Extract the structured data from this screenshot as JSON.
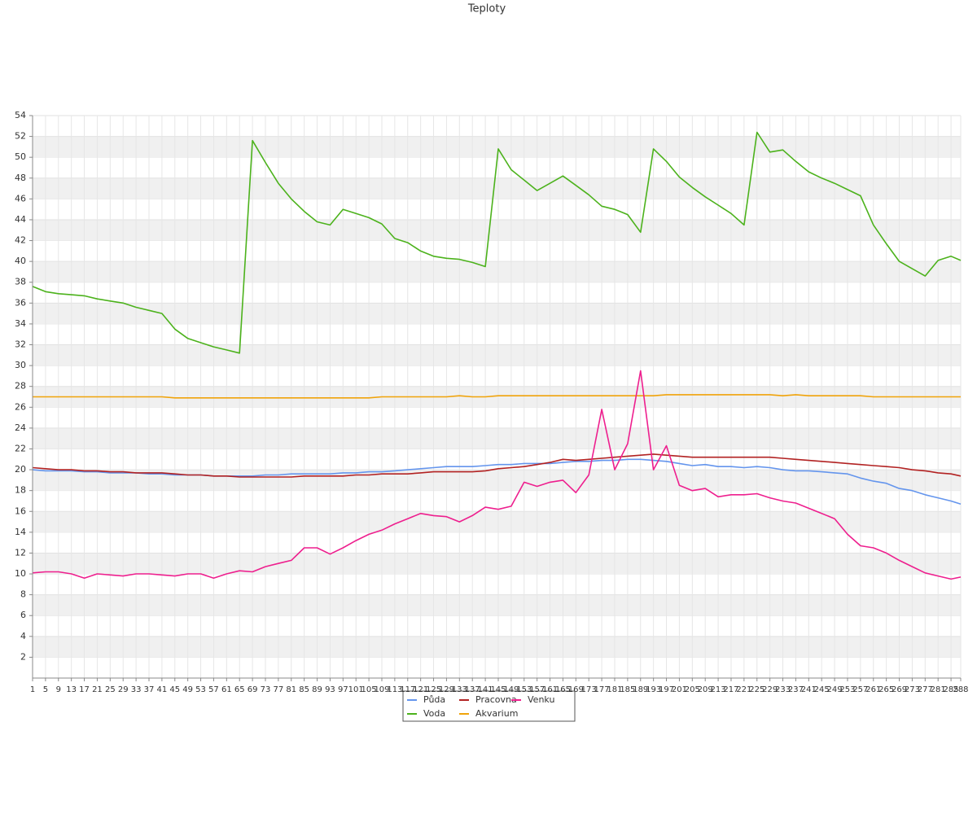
{
  "chart_data": {
    "type": "line",
    "title": "Teploty",
    "x": [
      1,
      5,
      9,
      13,
      17,
      21,
      25,
      29,
      33,
      37,
      41,
      45,
      49,
      53,
      57,
      61,
      65,
      69,
      73,
      77,
      81,
      85,
      89,
      93,
      97,
      101,
      105,
      109,
      113,
      117,
      121,
      125,
      129,
      133,
      137,
      141,
      145,
      149,
      153,
      157,
      161,
      165,
      169,
      173,
      177,
      181,
      185,
      189,
      193,
      197,
      201,
      205,
      209,
      213,
      217,
      221,
      225,
      229,
      233,
      237,
      241,
      245,
      249,
      253,
      257,
      261,
      265,
      269,
      273,
      277,
      281,
      285,
      288
    ],
    "xlim": [
      1,
      288
    ],
    "ylim": [
      0,
      54
    ],
    "yticks": [
      2,
      4,
      6,
      8,
      10,
      12,
      14,
      16,
      18,
      20,
      22,
      24,
      26,
      28,
      30,
      32,
      34,
      36,
      38,
      40,
      42,
      44,
      46,
      48,
      50,
      52,
      54
    ],
    "grid": true,
    "legend": "bottom",
    "series": [
      {
        "name": "Půda",
        "color": "#6495ed",
        "values": [
          20.0,
          19.9,
          19.9,
          19.9,
          19.8,
          19.8,
          19.7,
          19.7,
          19.7,
          19.6,
          19.6,
          19.5,
          19.5,
          19.5,
          19.4,
          19.4,
          19.4,
          19.4,
          19.5,
          19.5,
          19.6,
          19.6,
          19.6,
          19.6,
          19.7,
          19.7,
          19.8,
          19.8,
          19.9,
          20.0,
          20.1,
          20.2,
          20.3,
          20.3,
          20.3,
          20.4,
          20.5,
          20.5,
          20.6,
          20.6,
          20.6,
          20.7,
          20.8,
          20.8,
          20.9,
          20.9,
          21.0,
          21.0,
          20.9,
          20.8,
          20.6,
          20.4,
          20.5,
          20.3,
          20.3,
          20.2,
          20.3,
          20.2,
          20.0,
          19.9,
          19.9,
          19.8,
          19.7,
          19.6,
          19.2,
          18.9,
          18.7,
          18.2,
          18.0,
          17.6,
          17.3,
          17.0,
          16.7
        ]
      },
      {
        "name": "Voda",
        "color": "#4cb21c",
        "values": [
          37.6,
          37.1,
          36.9,
          36.8,
          36.7,
          36.4,
          36.2,
          36.0,
          35.6,
          35.3,
          35.0,
          33.5,
          32.6,
          32.2,
          31.8,
          31.5,
          31.2,
          51.6,
          49.5,
          47.5,
          46.0,
          44.8,
          43.8,
          43.5,
          45.0,
          44.6,
          44.2,
          43.6,
          42.2,
          41.8,
          41.0,
          40.5,
          40.3,
          40.2,
          39.9,
          39.5,
          50.8,
          48.8,
          47.8,
          46.8,
          47.5,
          48.2,
          47.3,
          46.4,
          45.3,
          45.0,
          44.5,
          42.8,
          50.8,
          49.6,
          48.1,
          47.1,
          46.2,
          45.4,
          44.6,
          43.5,
          52.4,
          50.5,
          50.7,
          49.6,
          48.6,
          48.0,
          47.5,
          46.9,
          46.3,
          43.5,
          41.7,
          40.0,
          39.3,
          38.6,
          40.1,
          40.5,
          40.1
        ]
      },
      {
        "name": "Pracovna",
        "color": "#b22222",
        "values": [
          20.2,
          20.1,
          20.0,
          20.0,
          19.9,
          19.9,
          19.8,
          19.8,
          19.7,
          19.7,
          19.7,
          19.6,
          19.5,
          19.5,
          19.4,
          19.4,
          19.3,
          19.3,
          19.3,
          19.3,
          19.3,
          19.4,
          19.4,
          19.4,
          19.4,
          19.5,
          19.5,
          19.6,
          19.6,
          19.6,
          19.7,
          19.8,
          19.8,
          19.8,
          19.8,
          19.9,
          20.1,
          20.2,
          20.3,
          20.5,
          20.7,
          21.0,
          20.9,
          21.0,
          21.1,
          21.2,
          21.3,
          21.4,
          21.5,
          21.4,
          21.3,
          21.2,
          21.2,
          21.2,
          21.2,
          21.2,
          21.2,
          21.2,
          21.1,
          21.0,
          20.9,
          20.8,
          20.7,
          20.6,
          20.5,
          20.4,
          20.3,
          20.2,
          20.0,
          19.9,
          19.7,
          19.6,
          19.4
        ]
      },
      {
        "name": "Akvarium",
        "color": "#f0a30a",
        "values": [
          27.0,
          27.0,
          27.0,
          27.0,
          27.0,
          27.0,
          27.0,
          27.0,
          27.0,
          27.0,
          27.0,
          26.9,
          26.9,
          26.9,
          26.9,
          26.9,
          26.9,
          26.9,
          26.9,
          26.9,
          26.9,
          26.9,
          26.9,
          26.9,
          26.9,
          26.9,
          26.9,
          27.0,
          27.0,
          27.0,
          27.0,
          27.0,
          27.0,
          27.1,
          27.0,
          27.0,
          27.1,
          27.1,
          27.1,
          27.1,
          27.1,
          27.1,
          27.1,
          27.1,
          27.1,
          27.1,
          27.1,
          27.1,
          27.1,
          27.2,
          27.2,
          27.2,
          27.2,
          27.2,
          27.2,
          27.2,
          27.2,
          27.2,
          27.1,
          27.2,
          27.1,
          27.1,
          27.1,
          27.1,
          27.1,
          27.0,
          27.0,
          27.0,
          27.0,
          27.0,
          27.0,
          27.0,
          27.0
        ]
      },
      {
        "name": "Venku",
        "color": "#ee1f8e",
        "values": [
          10.1,
          10.2,
          10.2,
          10.0,
          9.6,
          10.0,
          9.9,
          9.8,
          10.0,
          10.0,
          9.9,
          9.8,
          10.0,
          10.0,
          9.6,
          10.0,
          10.3,
          10.2,
          10.7,
          11.0,
          11.3,
          12.5,
          12.5,
          11.9,
          12.5,
          13.2,
          13.8,
          14.2,
          14.8,
          15.3,
          15.8,
          15.6,
          15.5,
          15.0,
          15.6,
          16.4,
          16.2,
          16.5,
          18.8,
          18.4,
          18.8,
          19.0,
          17.8,
          19.5,
          25.8,
          20.0,
          22.5,
          29.5,
          20.0,
          22.3,
          18.5,
          18.0,
          18.2,
          17.4,
          17.6,
          17.6,
          17.7,
          17.3,
          17.0,
          16.8,
          16.3,
          15.8,
          15.3,
          13.8,
          12.7,
          12.5,
          12.0,
          11.3,
          10.7,
          10.1,
          9.8,
          9.5,
          9.7
        ]
      }
    ]
  }
}
